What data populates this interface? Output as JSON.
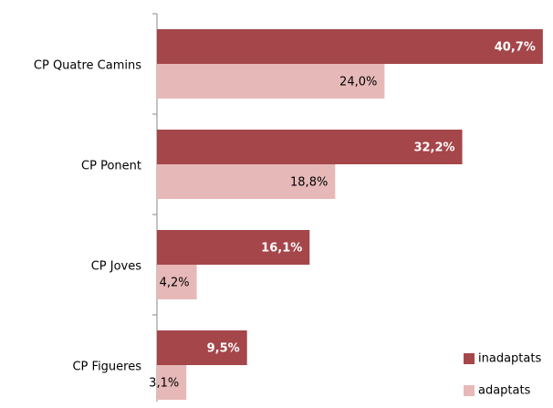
{
  "chart_data": {
    "type": "bar",
    "orientation": "horizontal",
    "categories": [
      "CP Quatre Camins",
      "CP Ponent",
      "CP Joves",
      "CP Figueres"
    ],
    "series": [
      {
        "name": "inadaptats",
        "color": "#a5464a",
        "values": [
          40.7,
          32.2,
          16.1,
          9.5
        ],
        "value_labels": [
          "40,7%",
          "32,2%",
          "16,1%",
          "9,5%"
        ]
      },
      {
        "name": "adaptats",
        "color": "#e6b9b8",
        "values": [
          24.0,
          18.8,
          4.2,
          3.1
        ],
        "value_labels": [
          "24,0%",
          "18,8%",
          "4,2%",
          "3,1%"
        ]
      }
    ],
    "xlim": [
      0,
      41
    ],
    "legend": "lower right"
  }
}
